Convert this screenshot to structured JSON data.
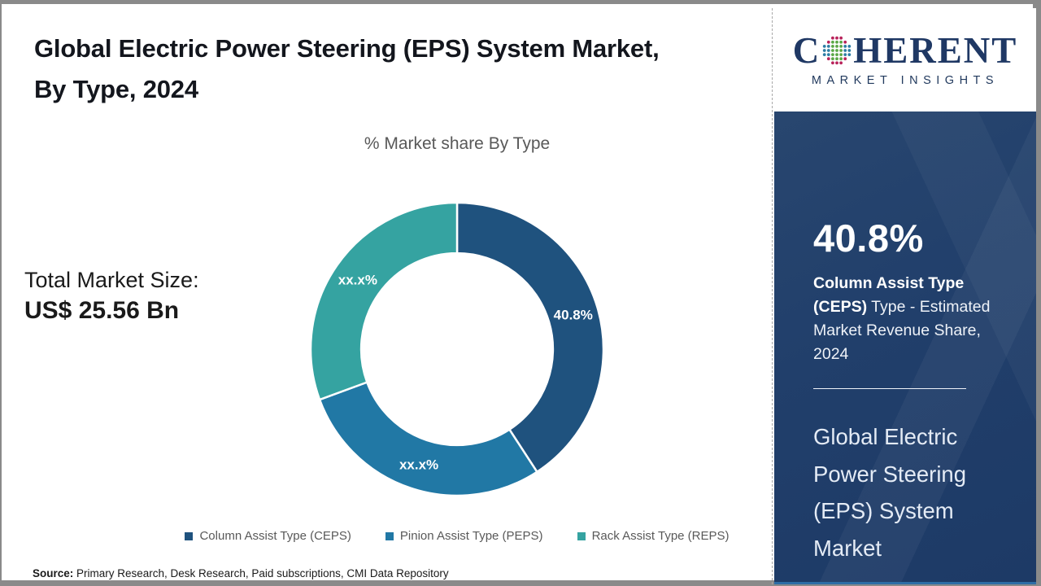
{
  "header": {
    "title": "Global Electric Power Steering (EPS) System Market, By Type, 2024"
  },
  "total_market": {
    "label": "Total Market Size:",
    "value": "US$ 25.56 Bn"
  },
  "chart_data": {
    "type": "pie",
    "subtype": "donut",
    "title": "% Market share By Type",
    "categories": [
      "Column Assist Type (CEPS)",
      "Pinion Assist Type (PEPS)",
      "Rack Assist Type (REPS)"
    ],
    "values": [
      40.8,
      28.6,
      30.6
    ],
    "slice_labels": [
      "40.8%",
      "xx.x%",
      "xx.x%"
    ],
    "colors": [
      "#1f527e",
      "#2178a5",
      "#35a3a1"
    ],
    "start_angle_deg": 0,
    "inner_radius_ratio": 0.655,
    "legend_position": "bottom",
    "note": "PEPS and REPS shares are masked as xx.x% in the source image; arc sizes estimated from pixels"
  },
  "source": {
    "label": "Source:",
    "text": " Primary Research, Desk Research, Paid subscriptions, CMI Data Repository"
  },
  "sidebar": {
    "logo": {
      "word_start": "C",
      "word_end": "HERENT",
      "subtitle": "MARKET INSIGHTS",
      "globe_icon": "dotted-globe-icon",
      "brand_navy": "#1f3864",
      "globe_dot_colors": [
        "#2e7da4",
        "#5aa746",
        "#b8235a"
      ]
    },
    "highlight": {
      "stat": "40.8%",
      "desc_bold": "Column Assist Type (CEPS)",
      "desc_rest": " Type - Estimated Market Revenue Share, 2024",
      "market_name": "Global Electric Power Steering (EPS) System Market",
      "panel_color": "#21406b",
      "accent_bottom": "#2e6ea6"
    }
  }
}
